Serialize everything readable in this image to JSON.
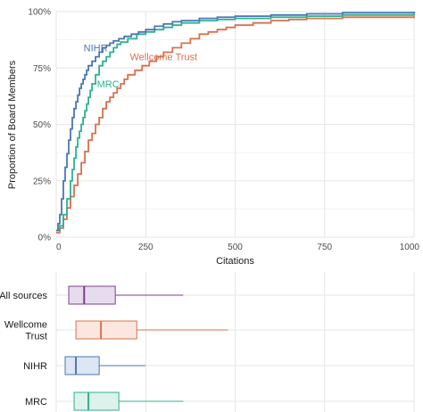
{
  "chart_data": [
    {
      "type": "line",
      "step": true,
      "xlabel": "Citations",
      "ylabel": "Proportion of Board Members",
      "xlim": [
        0,
        1000
      ],
      "ylim": [
        0,
        1
      ],
      "x_ticks": [
        "0",
        "250",
        "500",
        "750",
        "1000"
      ],
      "y_ticks": [
        "0%",
        "25%",
        "50%",
        "75%",
        "100%"
      ],
      "grid": true,
      "legend": "direct labels",
      "series": [
        {
          "name": "NIHR",
          "color": "#4a77b4",
          "label_at": [
            110,
            0.84
          ],
          "points": [
            [
              0,
              0.03
            ],
            [
              5,
              0.06
            ],
            [
              10,
              0.1
            ],
            [
              15,
              0.17
            ],
            [
              20,
              0.25
            ],
            [
              25,
              0.31
            ],
            [
              30,
              0.37
            ],
            [
              35,
              0.43
            ],
            [
              40,
              0.48
            ],
            [
              45,
              0.53
            ],
            [
              50,
              0.57
            ],
            [
              55,
              0.6
            ],
            [
              60,
              0.63
            ],
            [
              65,
              0.66
            ],
            [
              70,
              0.68
            ],
            [
              75,
              0.7
            ],
            [
              80,
              0.72
            ],
            [
              85,
              0.74
            ],
            [
              90,
              0.76
            ],
            [
              100,
              0.78
            ],
            [
              110,
              0.8
            ],
            [
              120,
              0.82
            ],
            [
              130,
              0.84
            ],
            [
              140,
              0.85
            ],
            [
              150,
              0.86
            ],
            [
              160,
              0.87
            ],
            [
              175,
              0.88
            ],
            [
              190,
              0.89
            ],
            [
              210,
              0.9
            ],
            [
              230,
              0.91
            ],
            [
              250,
              0.92
            ],
            [
              275,
              0.935
            ],
            [
              300,
              0.945
            ],
            [
              325,
              0.955
            ],
            [
              350,
              0.96
            ],
            [
              400,
              0.97
            ],
            [
              450,
              0.975
            ],
            [
              500,
              0.98
            ],
            [
              600,
              0.985
            ],
            [
              700,
              0.99
            ],
            [
              800,
              0.995
            ],
            [
              1000,
              1.0
            ]
          ]
        },
        {
          "name": "MRC",
          "color": "#2db28f",
          "label_at": [
            145,
            0.68
          ],
          "points": [
            [
              0,
              0.03
            ],
            [
              10,
              0.05
            ],
            [
              20,
              0.1
            ],
            [
              30,
              0.17
            ],
            [
              40,
              0.25
            ],
            [
              45,
              0.3
            ],
            [
              50,
              0.35
            ],
            [
              55,
              0.4
            ],
            [
              60,
              0.44
            ],
            [
              65,
              0.47
            ],
            [
              70,
              0.5
            ],
            [
              75,
              0.53
            ],
            [
              80,
              0.56
            ],
            [
              85,
              0.59
            ],
            [
              90,
              0.62
            ],
            [
              95,
              0.65
            ],
            [
              100,
              0.68
            ],
            [
              110,
              0.72
            ],
            [
              120,
              0.76
            ],
            [
              130,
              0.78
            ],
            [
              140,
              0.8
            ],
            [
              150,
              0.82
            ],
            [
              160,
              0.84
            ],
            [
              170,
              0.855
            ],
            [
              180,
              0.865
            ],
            [
              200,
              0.88
            ],
            [
              225,
              0.9
            ],
            [
              250,
              0.91
            ],
            [
              275,
              0.92
            ],
            [
              300,
              0.93
            ],
            [
              325,
              0.94
            ],
            [
              350,
              0.95
            ],
            [
              400,
              0.96
            ],
            [
              450,
              0.965
            ],
            [
              500,
              0.97
            ],
            [
              600,
              0.975
            ],
            [
              700,
              0.98
            ],
            [
              800,
              0.985
            ],
            [
              1000,
              0.99
            ]
          ]
        },
        {
          "name": "Wellcome Trust",
          "color": "#d8714e",
          "label_at": [
            300,
            0.8
          ],
          "points": [
            [
              0,
              0.02
            ],
            [
              10,
              0.04
            ],
            [
              20,
              0.08
            ],
            [
              30,
              0.13
            ],
            [
              40,
              0.18
            ],
            [
              50,
              0.23
            ],
            [
              60,
              0.28
            ],
            [
              70,
              0.33
            ],
            [
              80,
              0.38
            ],
            [
              90,
              0.43
            ],
            [
              100,
              0.46
            ],
            [
              110,
              0.5
            ],
            [
              120,
              0.53
            ],
            [
              130,
              0.57
            ],
            [
              140,
              0.6
            ],
            [
              150,
              0.62
            ],
            [
              160,
              0.64
            ],
            [
              170,
              0.66
            ],
            [
              180,
              0.68
            ],
            [
              190,
              0.7
            ],
            [
              200,
              0.72
            ],
            [
              220,
              0.74
            ],
            [
              240,
              0.76
            ],
            [
              260,
              0.78
            ],
            [
              280,
              0.8
            ],
            [
              300,
              0.82
            ],
            [
              325,
              0.84
            ],
            [
              350,
              0.86
            ],
            [
              375,
              0.88
            ],
            [
              400,
              0.9
            ],
            [
              425,
              0.91
            ],
            [
              450,
              0.92
            ],
            [
              475,
              0.93
            ],
            [
              500,
              0.94
            ],
            [
              550,
              0.95
            ],
            [
              600,
              0.96
            ],
            [
              650,
              0.965
            ],
            [
              700,
              0.97
            ],
            [
              800,
              0.975
            ],
            [
              1000,
              0.98
            ]
          ]
        }
      ]
    },
    {
      "type": "boxplot",
      "xlim": [
        0,
        1000
      ],
      "grid": true,
      "categories": [
        "All sources",
        "Wellcome\nTrust",
        "NIHR",
        "MRC"
      ],
      "series": [
        {
          "name": "All sources",
          "color": "#7b3f8f",
          "fill": "#e6dcee",
          "min": 35,
          "q1": 35,
          "median": 78,
          "q3": 165,
          "max": 355
        },
        {
          "name": "Wellcome\nTrust",
          "color": "#d8714e",
          "fill": "#fbe7df",
          "min": 55,
          "q1": 55,
          "median": 125,
          "q3": 225,
          "max": 480
        },
        {
          "name": "NIHR",
          "color": "#4a77b4",
          "fill": "#dde6f3",
          "min": 25,
          "q1": 25,
          "median": 55,
          "q3": 120,
          "max": 250
        },
        {
          "name": "MRC",
          "color": "#2db28f",
          "fill": "#dcf2ea",
          "min": 50,
          "q1": 50,
          "median": 90,
          "q3": 175,
          "max": 355
        }
      ]
    }
  ]
}
